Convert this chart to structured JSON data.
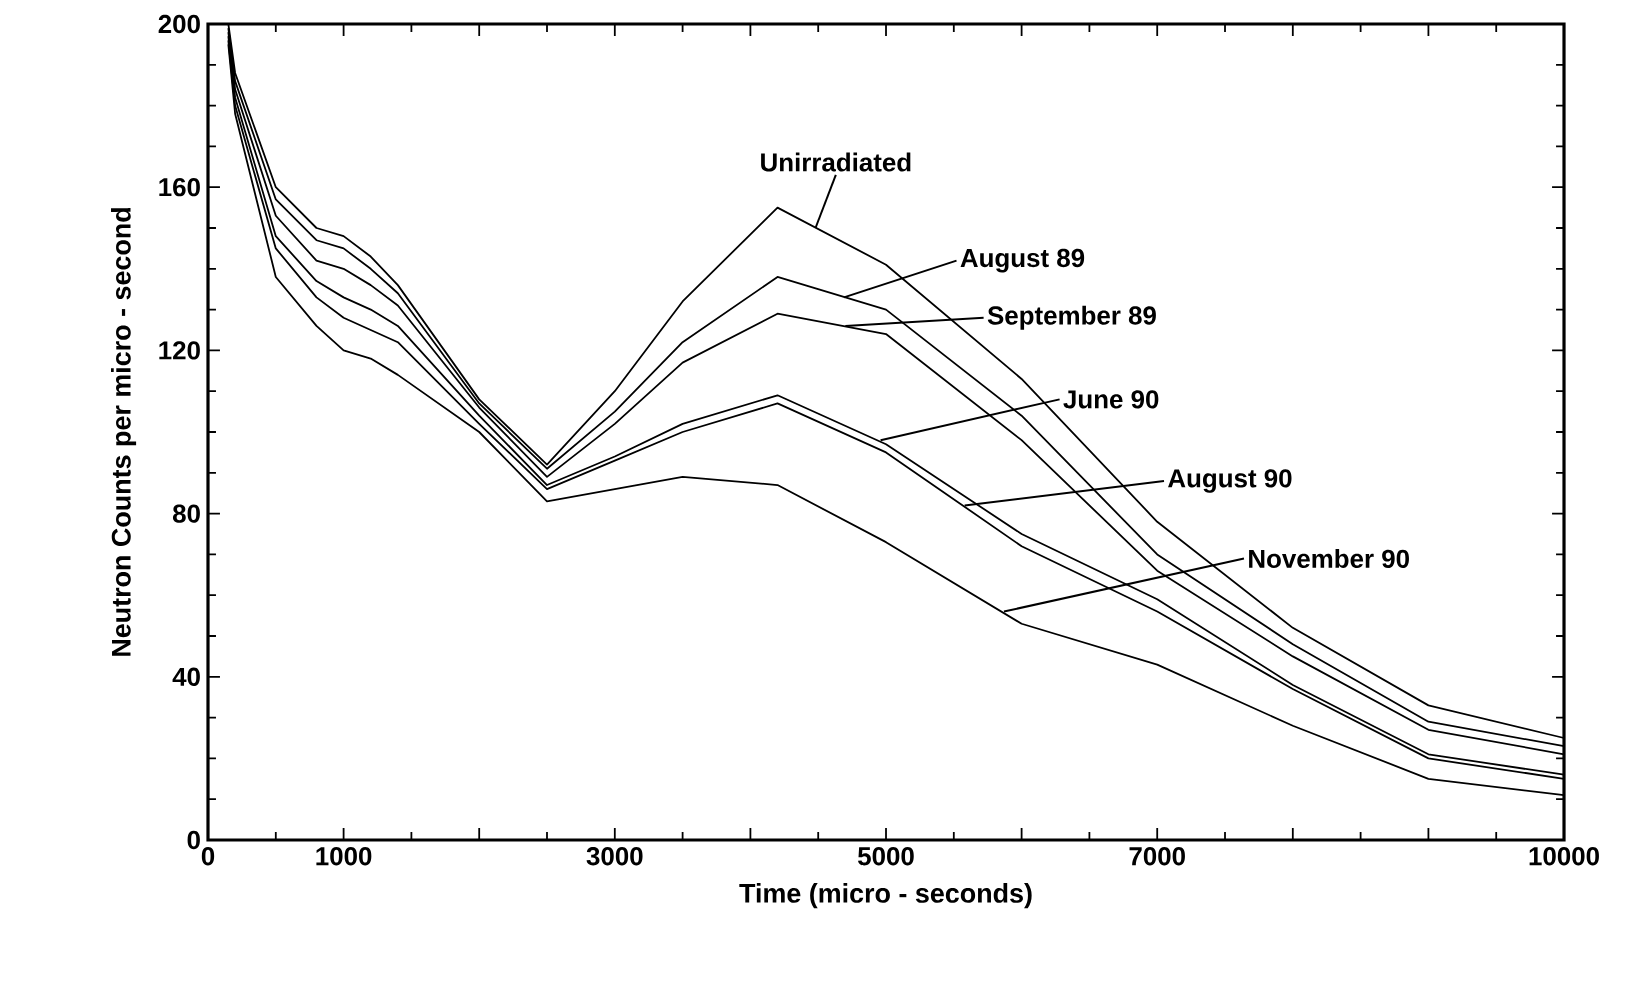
{
  "chart_data": {
    "type": "line",
    "xlabel": "Time (micro - seconds)",
    "ylabel": "Neutron Counts per micro - second",
    "x": [
      150,
      200,
      500,
      800,
      1000,
      1200,
      1400,
      2000,
      2500,
      3000,
      3500,
      4200,
      5000,
      6000,
      7000,
      8000,
      9000,
      10000
    ],
    "series": [
      {
        "color": "#000000",
        "values": [
          200,
          188,
          160,
          150,
          148,
          143,
          136,
          108,
          92,
          110,
          132,
          155,
          141,
          113,
          78,
          52,
          33,
          25
        ]
      },
      {
        "color": "#000000",
        "values": [
          199,
          186,
          157,
          147,
          145,
          140,
          134,
          107,
          91,
          105,
          122,
          138,
          130,
          104,
          70,
          48,
          29,
          23
        ]
      },
      {
        "color": "#000000",
        "values": [
          198,
          184,
          153,
          142,
          140,
          136,
          131,
          106,
          89,
          102,
          117,
          129,
          124,
          98,
          66,
          45,
          27,
          21
        ]
      },
      {
        "color": "#000000",
        "values": [
          197,
          182,
          148,
          137,
          133,
          130,
          126,
          104,
          87,
          94,
          102,
          109,
          97,
          75,
          59,
          38,
          21,
          16
        ]
      },
      {
        "color": "#000000",
        "values": [
          196,
          180,
          145,
          133,
          128,
          125,
          122,
          102,
          86,
          93,
          100,
          107,
          95,
          72,
          56,
          37,
          20,
          15
        ]
      },
      {
        "color": "#000000",
        "values": [
          195,
          178,
          138,
          126,
          120,
          118,
          114,
          100,
          83,
          86,
          89,
          87,
          73,
          53,
          43,
          28,
          15,
          11
        ]
      }
    ],
    "annotations": [
      {
        "text": "Unirradiated",
        "x": 4480,
        "y": 150
      },
      {
        "text": "August 89",
        "x": 4690,
        "y": 133
      },
      {
        "text": "September 89",
        "x": 4700,
        "y": 126
      },
      {
        "text": "June 90",
        "x": 4960,
        "y": 98
      },
      {
        "text": "August 90",
        "x": 5580,
        "y": 82
      },
      {
        "text": "November 90",
        "x": 5870,
        "y": 56
      }
    ],
    "xlim": [
      0,
      10000
    ],
    "ylim": [
      0,
      200
    ],
    "xticks": [
      0,
      1000,
      {
        "value": 2000,
        "label": null
      },
      3000,
      {
        "value": 4000,
        "label": null
      },
      5000,
      {
        "value": 6000,
        "label": null
      },
      7000,
      {
        "value": 8000,
        "label": null
      },
      {
        "value": 9000,
        "label": null
      },
      10000
    ],
    "yticks": [
      0,
      40,
      80,
      120,
      160,
      200
    ]
  }
}
